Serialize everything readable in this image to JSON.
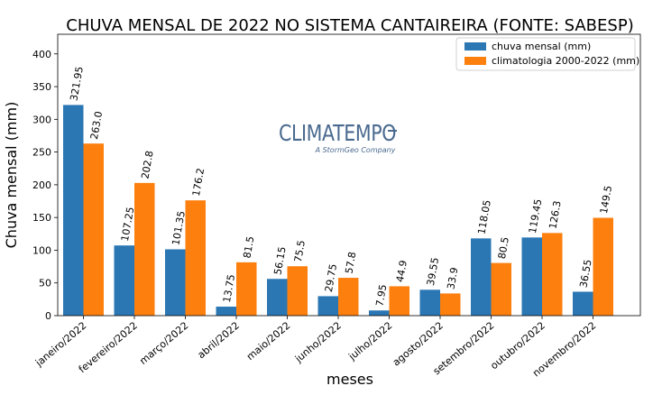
{
  "chart_data": {
    "type": "bar",
    "title": "CHUVA MENSAL DE 2022 NO SISTEMA CANTAIREIRA (FONTE: SABESP)",
    "xlabel": "meses",
    "ylabel": "Chuva mensal (mm)",
    "ylim": [
      0,
      430
    ],
    "yticks": [
      0,
      50,
      100,
      150,
      200,
      250,
      300,
      350,
      400
    ],
    "grid": false,
    "legend_position": "top-right",
    "categories": [
      "janeiro/2022",
      "fevereiro/2022",
      "março/2022",
      "abril/2022",
      "maio/2022",
      "junho/2022",
      "julho/2022",
      "agosto/2022",
      "setembro/2022",
      "outubro/2022",
      "novembro/2022"
    ],
    "series": [
      {
        "name": "chuva mensal (mm)",
        "color": "#2b77b4",
        "values": [
          321.95,
          107.25,
          101.35,
          13.75,
          56.15,
          29.75,
          7.95,
          39.55,
          118.05,
          119.45,
          36.55
        ],
        "labels": [
          "321.95",
          "107.25",
          "101.35",
          "13.75",
          "56.15",
          "29.75",
          "7.95",
          "39.55",
          "118.05",
          "119.45",
          "36.55"
        ]
      },
      {
        "name": "climatologia 2000-2022 (mm)",
        "color": "#fd7f0e",
        "values": [
          263.0,
          202.8,
          176.2,
          81.5,
          75.5,
          57.8,
          44.9,
          33.9,
          80.5,
          126.3,
          149.5
        ],
        "labels": [
          "263.0",
          "202.8",
          "176.2",
          "81.5",
          "75.5",
          "57.8",
          "44.9",
          "33.9",
          "80.5",
          "126.3",
          "149.5"
        ]
      }
    ]
  },
  "watermark": {
    "brand": "CLIMATEMPO",
    "tagline": "A StormGeo Company",
    "color": "#4a6a8f"
  }
}
